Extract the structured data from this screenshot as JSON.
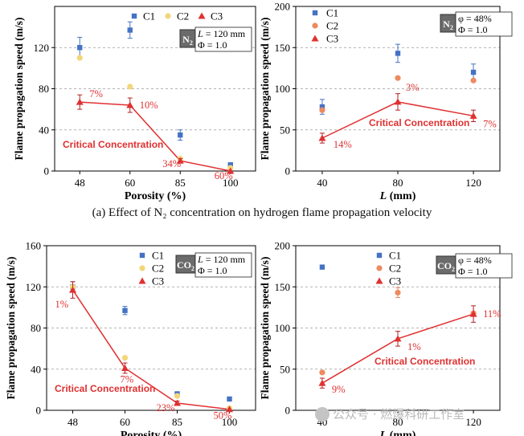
{
  "caption": "(a) Effect of N₂ concentration on hydrogen flame propagation velocity",
  "watermark": "公众号 · 燃爆科研工作室",
  "colors": {
    "c1": "#4472c4",
    "c2": "#f2d67a",
    "c2b": "#ed8a5f",
    "c3": "#e03030"
  },
  "chart_data": [
    {
      "type": "scatter",
      "xlabel": "Porosity (%)",
      "ylabel": "Flame propagation speed (m/s)",
      "categories": [
        "48",
        "60",
        "85",
        "100"
      ],
      "ylim": [
        0,
        160
      ],
      "yticks": [
        "0",
        "40",
        "80",
        "120"
      ],
      "grid": true,
      "legend": [
        "C1",
        "C2",
        "C3"
      ],
      "legend_position": "top-right",
      "gas_label": "N₂",
      "params": [
        "L = 120 mm",
        "Φ = 1.0"
      ],
      "annotation": "Critical Concentration",
      "series": [
        {
          "name": "C1",
          "values": [
            120,
            137,
            35,
            6
          ],
          "errors": [
            10,
            8,
            5,
            2
          ]
        },
        {
          "name": "C2",
          "values": [
            110,
            82,
            12,
            3
          ],
          "errors": [
            0,
            0,
            0,
            0
          ]
        },
        {
          "name": "C3",
          "values": [
            67,
            64,
            10,
            0
          ],
          "errors": [
            7,
            7,
            2,
            0
          ]
        }
      ],
      "point_labels": [
        "7%",
        "10%",
        "34%",
        "60%"
      ]
    },
    {
      "type": "scatter",
      "xlabel": "L (mm)",
      "ylabel": "Flame propagation speed (m/s)",
      "categories": [
        "40",
        "80",
        "120"
      ],
      "ylim": [
        0,
        200
      ],
      "yticks": [
        "0",
        "50",
        "100",
        "150",
        "200"
      ],
      "grid": true,
      "legend": [
        "C1",
        "C2",
        "C3"
      ],
      "legend_position": "top-left",
      "gas_label": "N₂",
      "params": [
        "φ = 48%",
        "Φ = 1.0"
      ],
      "annotation": "Critical Concentration",
      "series": [
        {
          "name": "C1",
          "values": [
            78,
            143,
            120
          ],
          "errors": [
            9,
            11,
            10
          ]
        },
        {
          "name": "C2",
          "values": [
            74,
            113,
            110
          ],
          "errors": [
            0,
            0,
            0
          ]
        },
        {
          "name": "C3",
          "values": [
            40,
            84,
            67
          ],
          "errors": [
            6,
            10,
            7
          ]
        }
      ],
      "point_labels": [
        "14%",
        "3%",
        "7%"
      ]
    },
    {
      "type": "scatter",
      "xlabel": "Porosity (%)",
      "ylabel": "Flame propagation speed (m/s)",
      "categories": [
        "48",
        "60",
        "85",
        "100"
      ],
      "ylim": [
        0,
        160
      ],
      "yticks": [
        "0",
        "40",
        "80",
        "120",
        "160"
      ],
      "grid": true,
      "legend": [
        "C1",
        "C2",
        "C3"
      ],
      "legend_position": "top-right",
      "gas_label": "CO₂",
      "params": [
        "L = 120 mm",
        "Φ = 1.0"
      ],
      "annotation": "Critical Concentration",
      "series": [
        {
          "name": "C1",
          "values": [
            120,
            97,
            16,
            11
          ],
          "errors": [
            5,
            4,
            2,
            1
          ]
        },
        {
          "name": "C2",
          "values": [
            120,
            51,
            14,
            2
          ],
          "errors": [
            0,
            0,
            0,
            0
          ]
        },
        {
          "name": "C3",
          "values": [
            117,
            41,
            7,
            1
          ],
          "errors": [
            8,
            5,
            2,
            0
          ]
        }
      ],
      "point_labels": [
        "1%",
        "7%",
        "23%",
        "50%"
      ]
    },
    {
      "type": "scatter",
      "xlabel": "L (mm)",
      "ylabel": "Flame propagation speed (m/s)",
      "categories": [
        "40",
        "80",
        "120"
      ],
      "ylim": [
        0,
        200
      ],
      "yticks": [
        "0",
        "50",
        "100",
        "150",
        "200"
      ],
      "grid": true,
      "legend": [
        "C1",
        "C2",
        "C3"
      ],
      "legend_position": "top-center",
      "gas_label": "CO₂",
      "params": [
        "φ = 48%",
        "Φ = 1.0"
      ],
      "annotation": "Critical Concentration",
      "series": [
        {
          "name": "C1",
          "values": [
            174,
            0,
            0
          ],
          "errors": [
            0,
            0,
            0
          ]
        },
        {
          "name": "C2",
          "values": [
            46,
            143,
            118
          ],
          "errors": [
            0,
            6,
            0
          ]
        },
        {
          "name": "C3",
          "values": [
            33,
            87,
            117
          ],
          "errors": [
            6,
            9,
            10
          ]
        }
      ],
      "point_labels": [
        "9%",
        "1%",
        "11%"
      ]
    }
  ]
}
